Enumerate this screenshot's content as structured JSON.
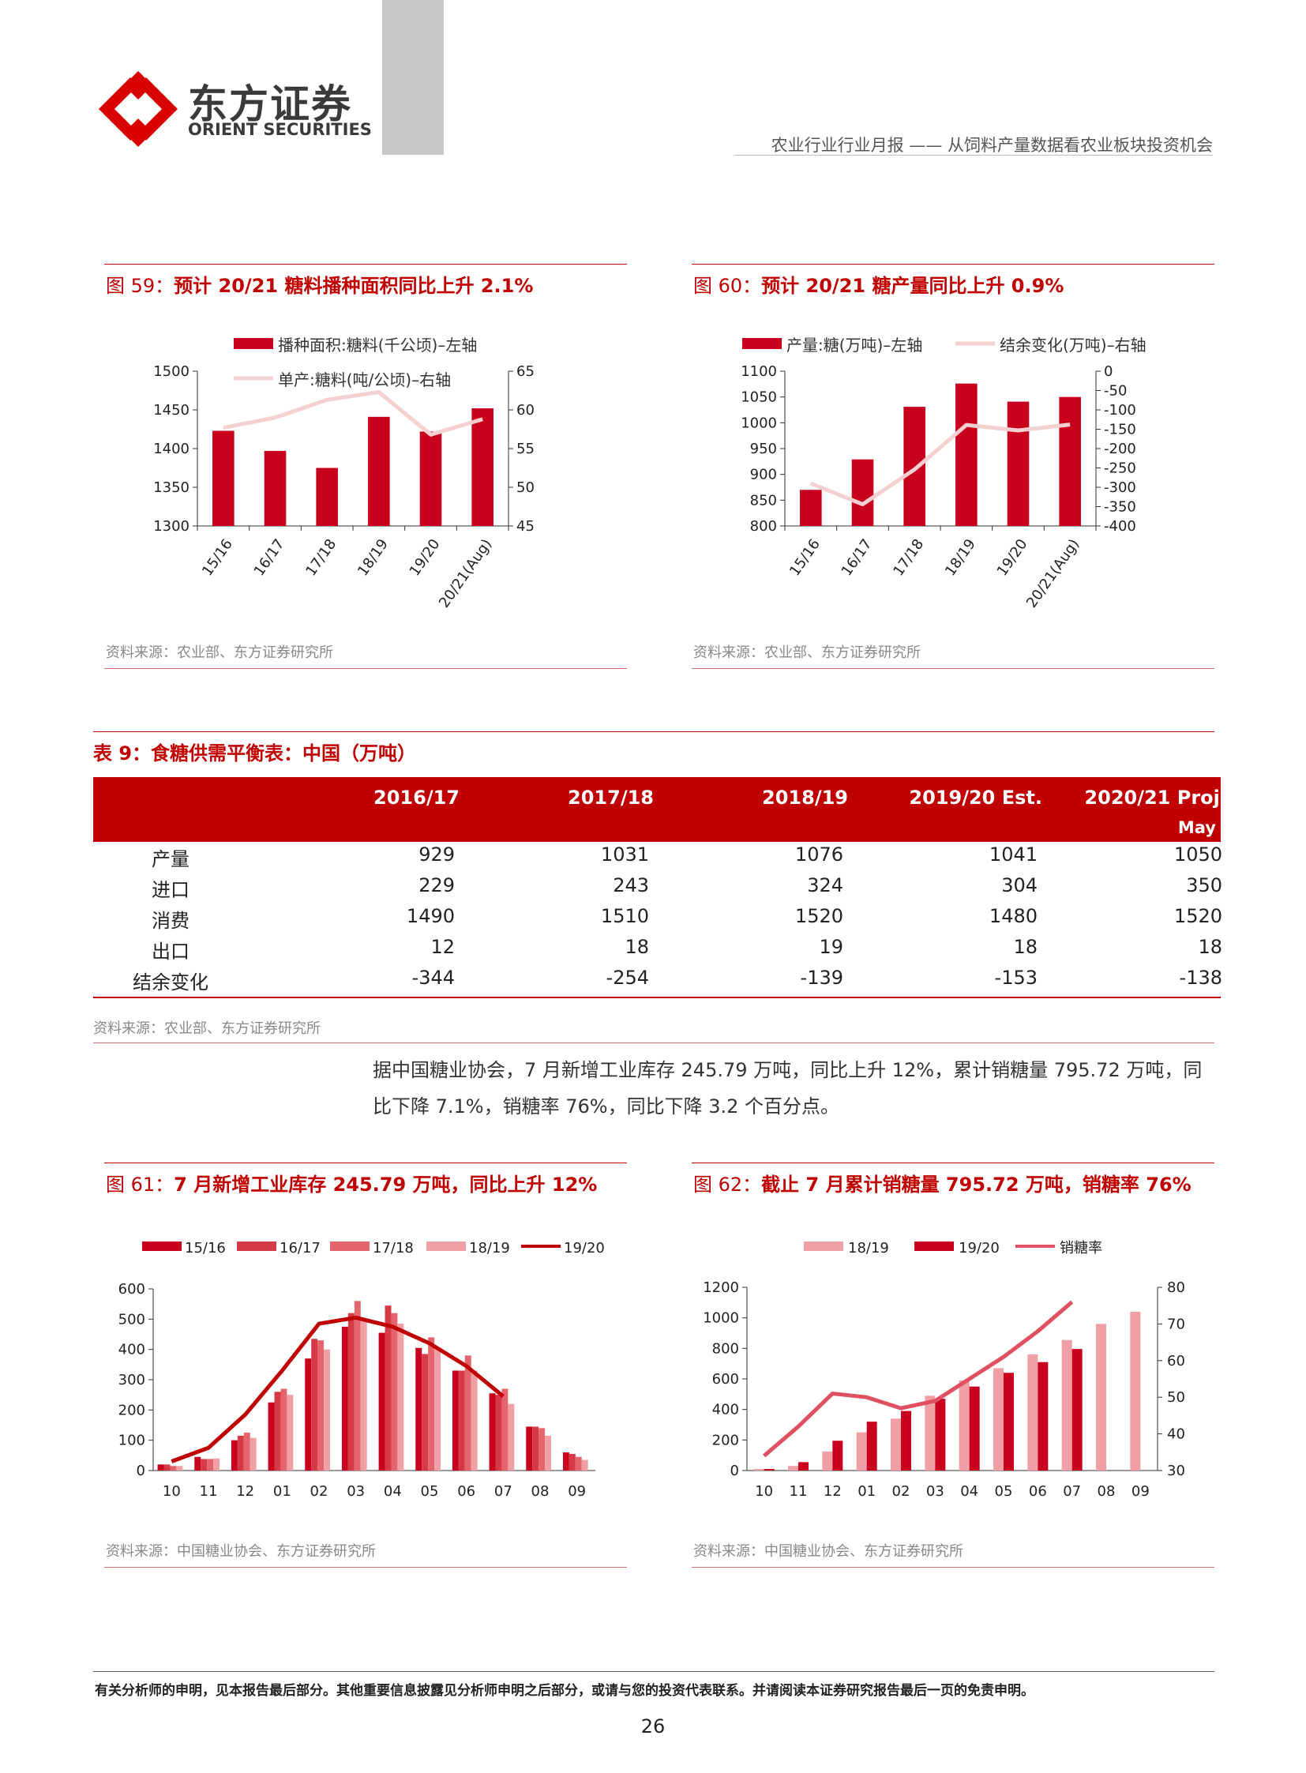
{
  "header": {
    "company_cn": "东方证券",
    "company_en": "ORIENT SECURITIES",
    "report_type": "农业行业行业月报",
    "separator": "——",
    "report_title": "从饲料产量数据看农业板块投资机会"
  },
  "fig59": {
    "title_label": "图 59：",
    "title_text": "预计 20/21 糖料播种面积同比上升 2.1%",
    "source": "资料来源：农业部、东方证券研究所"
  },
  "fig60": {
    "title_label": "图 60：",
    "title_text": "预计 20/21 糖产量同比上升 0.9%",
    "source": "资料来源：农业部、东方证券研究所"
  },
  "fig61": {
    "title_label": "图 61：",
    "title_text": "7 月新增工业库存 245.79 万吨，同比上升 12%",
    "source": "资料来源：中国糖业协会、东方证券研究所"
  },
  "fig62": {
    "title_label": "图 62：",
    "title_text": "截止 7 月累计销糖量 795.72 万吨，销糖率 76%",
    "source": "资料来源：中国糖业协会、东方证券研究所"
  },
  "table9": {
    "title": "表 9：食糖供需平衡表：中国（万吨）",
    "headers": [
      "",
      "2016/17",
      "2017/18",
      "2018/19",
      "2019/20 Est.",
      "2020/21 Proj."
    ],
    "header_sub": "May",
    "rows": [
      {
        "label": "产量",
        "values": [
          "929",
          "1031",
          "1076",
          "1041",
          "1050"
        ]
      },
      {
        "label": "进口",
        "values": [
          "229",
          "243",
          "324",
          "304",
          "350"
        ]
      },
      {
        "label": "消费",
        "values": [
          "1490",
          "1510",
          "1520",
          "1480",
          "1520"
        ]
      },
      {
        "label": "出口",
        "values": [
          "12",
          "18",
          "19",
          "18",
          "18"
        ]
      },
      {
        "label": "结余变化",
        "values": [
          "-344",
          "-254",
          "-139",
          "-153",
          "-138"
        ]
      }
    ],
    "source": "资料来源：农业部、东方证券研究所"
  },
  "paragraph": {
    "line1": "据中国糖业协会，7 月新增工业库存 245.79 万吨，同比上升 12%，累计销糖量 795.72 万吨，同",
    "line2": "比下降 7.1%，销糖率 76%，同比下降 3.2 个百分点。"
  },
  "footer": {
    "disclaimer": "有关分析师的申明，见本报告最后部分。其他重要信息披露见分析师申明之后部分，或请与您的投资代表联系。并请阅读本证券研究报告最后一页的免责申明。",
    "page_number": "26"
  },
  "colors": {
    "brand_red": "#c00000",
    "bar_red": "#c8001e",
    "line_pink": "#f5d0d0"
  },
  "chart_data": [
    {
      "id": "fig59",
      "type": "bar",
      "categories": [
        "15/16",
        "16/17",
        "17/18",
        "18/19",
        "19/20",
        "20/21(Aug)"
      ],
      "series": [
        {
          "name": "播种面积:糖料(千公顷)–左轴",
          "type": "bar",
          "axis": "left",
          "color": "#c8001e",
          "values": [
            1423,
            1397,
            1375,
            1441,
            1422,
            1452
          ]
        },
        {
          "name": "单产:糖料(吨/公顷)–右轴",
          "type": "line",
          "axis": "right",
          "color": "#f5d0d0",
          "values": [
            57.7,
            59.0,
            61.3,
            62.3,
            56.8,
            58.8
          ]
        }
      ],
      "ylim_left": [
        1300,
        1500
      ],
      "yticks_left": [
        1300,
        1350,
        1400,
        1450,
        1500
      ],
      "ylim_right": [
        45,
        65
      ],
      "yticks_right": [
        45,
        50,
        55,
        60,
        65
      ]
    },
    {
      "id": "fig60",
      "type": "bar",
      "categories": [
        "15/16",
        "16/17",
        "17/18",
        "18/19",
        "19/20",
        "20/21(Aug)"
      ],
      "series": [
        {
          "name": "产量:糖(万吨)–左轴",
          "type": "bar",
          "axis": "left",
          "color": "#c8001e",
          "values": [
            870,
            929,
            1031,
            1076,
            1041,
            1050
          ]
        },
        {
          "name": "结余变化(万吨)–右轴",
          "type": "line",
          "axis": "right",
          "color": "#f5d0d0",
          "values": [
            -290,
            -344,
            -254,
            -139,
            -153,
            -138
          ]
        }
      ],
      "ylim_left": [
        800,
        1100
      ],
      "yticks_left": [
        800,
        850,
        900,
        950,
        1000,
        1050,
        1100
      ],
      "ylim_right": [
        -400,
        0
      ],
      "yticks_right": [
        -400,
        -350,
        -300,
        -250,
        -200,
        -150,
        -100,
        -50,
        0
      ]
    },
    {
      "id": "fig61",
      "type": "bar",
      "categories": [
        "10",
        "11",
        "12",
        "01",
        "02",
        "03",
        "04",
        "05",
        "06",
        "07",
        "08",
        "09"
      ],
      "series": [
        {
          "name": "15/16",
          "type": "bar",
          "color": "#c8001e",
          "values": [
            20,
            45,
            100,
            225,
            370,
            475,
            455,
            405,
            330,
            255,
            145,
            60
          ]
        },
        {
          "name": "16/17",
          "type": "bar",
          "color": "#d63a46",
          "values": [
            20,
            38,
            115,
            260,
            435,
            520,
            545,
            385,
            330,
            250,
            145,
            55
          ]
        },
        {
          "name": "17/18",
          "type": "bar",
          "color": "#e5656e",
          "values": [
            15,
            38,
            125,
            270,
            430,
            560,
            520,
            440,
            380,
            270,
            140,
            45
          ]
        },
        {
          "name": "18/19",
          "type": "bar",
          "color": "#f0a0a5",
          "values": [
            15,
            40,
            108,
            250,
            400,
            495,
            485,
            405,
            330,
            220,
            115,
            35
          ]
        },
        {
          "name": "19/20",
          "type": "line",
          "color": "#c00000",
          "values": [
            30,
            75,
            185,
            330,
            485,
            505,
            475,
            420,
            345,
            245,
            null,
            null
          ]
        }
      ],
      "ylim": [
        0,
        600
      ],
      "yticks": [
        0,
        100,
        200,
        300,
        400,
        500,
        600
      ]
    },
    {
      "id": "fig62",
      "type": "bar",
      "categories": [
        "10",
        "11",
        "12",
        "01",
        "02",
        "03",
        "04",
        "05",
        "06",
        "07",
        "08",
        "09"
      ],
      "series": [
        {
          "name": "18/19",
          "type": "bar",
          "axis": "left",
          "color": "#f0a0a5",
          "values": [
            10,
            30,
            125,
            250,
            340,
            490,
            590,
            670,
            760,
            855,
            960,
            1040
          ]
        },
        {
          "name": "19/20",
          "type": "bar",
          "axis": "left",
          "color": "#c8001e",
          "values": [
            10,
            55,
            195,
            320,
            390,
            470,
            550,
            640,
            710,
            796,
            null,
            null
          ]
        },
        {
          "name": "销糖率",
          "type": "line",
          "axis": "right",
          "color": "#e05060",
          "values": [
            34,
            42,
            51,
            50,
            47,
            49,
            55,
            61,
            68,
            76,
            null,
            null
          ]
        }
      ],
      "ylim_left": [
        0,
        1200
      ],
      "yticks_left": [
        0,
        200,
        400,
        600,
        800,
        1000,
        1200
      ],
      "ylim_right": [
        30,
        80
      ],
      "yticks_right": [
        30,
        40,
        50,
        60,
        70,
        80
      ]
    }
  ]
}
